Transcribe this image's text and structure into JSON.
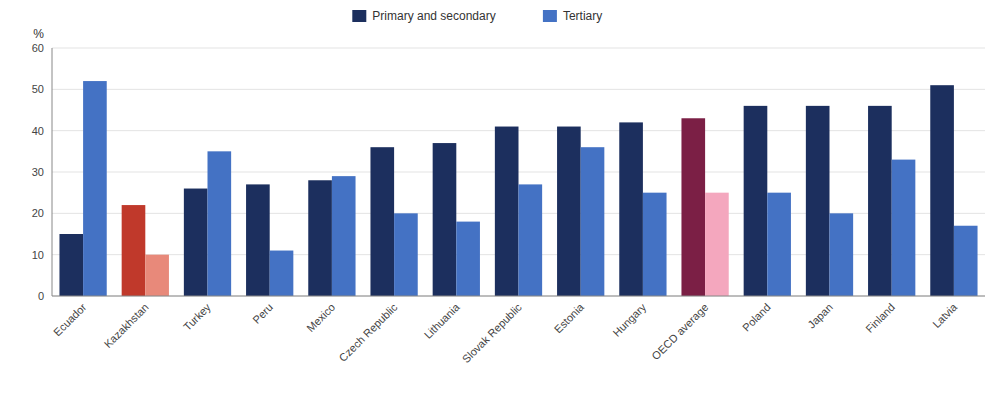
{
  "chart_data": {
    "type": "bar",
    "categories": [
      "Ecuador",
      "Kazakhstan",
      "Turkey",
      "Peru",
      "Mexico",
      "Czech Republic",
      "Lithuania",
      "Slovak Republic",
      "Estonia",
      "Hungary",
      "OECD average",
      "Poland",
      "Japan",
      "Finland",
      "Latvia"
    ],
    "series": [
      {
        "name": "Primary and secondary",
        "color": "#1c2f5e",
        "colors": [
          "#1c2f5e",
          "#c0392b",
          "#1c2f5e",
          "#1c2f5e",
          "#1c2f5e",
          "#1c2f5e",
          "#1c2f5e",
          "#1c2f5e",
          "#1c2f5e",
          "#1c2f5e",
          "#7b1f45",
          "#1c2f5e",
          "#1c2f5e",
          "#1c2f5e",
          "#1c2f5e"
        ],
        "values": [
          15,
          22,
          26,
          27,
          28,
          36,
          37,
          41,
          41,
          42,
          43,
          46,
          46,
          46,
          51
        ]
      },
      {
        "name": "Tertiary",
        "color": "#4472c4",
        "colors": [
          "#4472c4",
          "#e8897a",
          "#4472c4",
          "#4472c4",
          "#4472c4",
          "#4472c4",
          "#4472c4",
          "#4472c4",
          "#4472c4",
          "#4472c4",
          "#f4a7be",
          "#4472c4",
          "#4472c4",
          "#4472c4",
          "#4472c4"
        ],
        "values": [
          52,
          10,
          35,
          11,
          29,
          20,
          18,
          27,
          36,
          25,
          25,
          25,
          20,
          33,
          17
        ]
      }
    ],
    "ylabel": "%",
    "ylim": [
      0,
      60
    ],
    "yticks": [
      0,
      10,
      20,
      30,
      40,
      50,
      60
    ],
    "grid": true,
    "legend": "top"
  }
}
